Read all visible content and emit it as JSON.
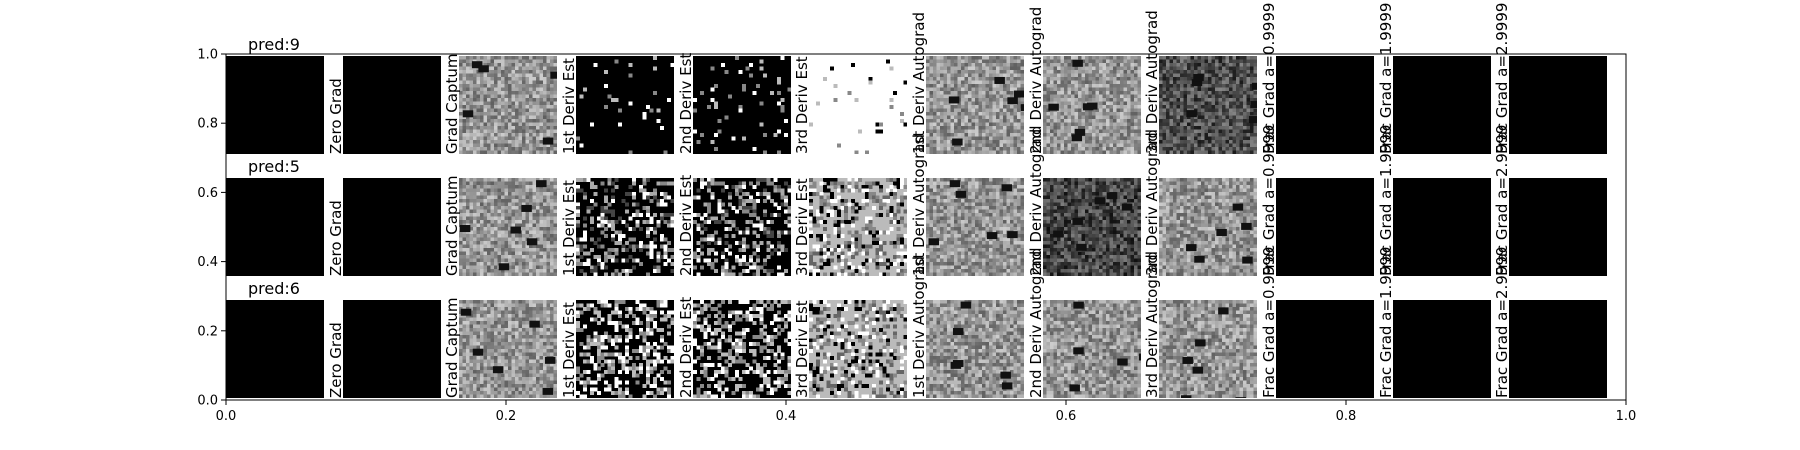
{
  "chart_data": {
    "type": "heatmap",
    "title": "",
    "xlabel": "",
    "ylabel": "",
    "xlim": [
      0.0,
      1.0
    ],
    "ylim": [
      0.0,
      1.0
    ],
    "x_ticks": [
      "0.0",
      "0.2",
      "0.4",
      "0.6",
      "0.8",
      "1.0"
    ],
    "y_ticks": [
      "0.0",
      "0.2",
      "0.4",
      "0.6",
      "0.8",
      "1.0"
    ],
    "grid": false,
    "rows": [
      {
        "title": "pred:9",
        "digit": "9"
      },
      {
        "title": "pred:5",
        "digit": "5"
      },
      {
        "title": "pred:6",
        "digit": "6"
      }
    ],
    "panels": [
      {
        "key": "input",
        "label": ""
      },
      {
        "key": "zero",
        "label": "Zero Grad"
      },
      {
        "key": "grad",
        "label": "Grad Captum"
      },
      {
        "key": "d1est",
        "label": "1st Deriv Est"
      },
      {
        "key": "d2est",
        "label": "2nd Deriv Est"
      },
      {
        "key": "d3est",
        "label": "3rd Deriv Est"
      },
      {
        "key": "d1auto",
        "label": "1st Deriv Autograd"
      },
      {
        "key": "d2auto",
        "label": "2nd Deriv Autograd"
      },
      {
        "key": "d3auto",
        "label": "3rd Deriv Autograd"
      },
      {
        "key": "frac1",
        "label": "Frac Grad a=0.9999"
      },
      {
        "key": "frac2",
        "label": "Frac Grad a=1.9999"
      },
      {
        "key": "frac3",
        "label": "Frac Grad a=2.9999"
      }
    ]
  }
}
